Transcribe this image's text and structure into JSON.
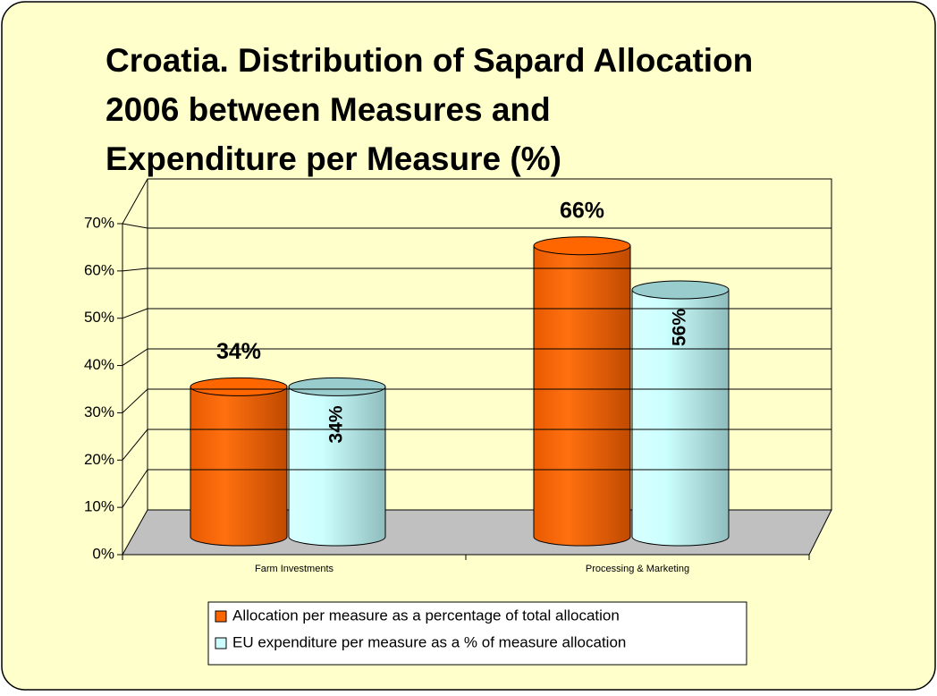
{
  "chart_data": {
    "type": "bar3d",
    "title": [
      "Croatia. Distribution of Sapard Allocation",
      "2006 between Measures  and",
      "Expenditure per Measure (%)"
    ],
    "categories": [
      "Farm Investments",
      "Processing & Marketing"
    ],
    "series": [
      {
        "name": "Allocation per measure as a percentage of total allocation",
        "color": "#ff6600",
        "values": [
          34,
          66
        ],
        "value_labels": [
          "34%",
          "66%"
        ]
      },
      {
        "name": "EU expenditure per measure as a % of measure allocation",
        "color": "#ccffff",
        "values": [
          34,
          56
        ],
        "value_labels": [
          "34%",
          "56%"
        ]
      }
    ],
    "ylim": [
      0,
      70
    ],
    "yticks": [
      {
        "value": 0,
        "label": "0%"
      },
      {
        "value": 10,
        "label": "10%"
      },
      {
        "value": 20,
        "label": "20%"
      },
      {
        "value": 30,
        "label": "30%"
      },
      {
        "value": 40,
        "label": "40%"
      },
      {
        "value": 50,
        "label": "50%"
      },
      {
        "value": 60,
        "label": "60%"
      },
      {
        "value": 70,
        "label": "70%"
      }
    ],
    "grid": true,
    "legend": "bottom"
  }
}
